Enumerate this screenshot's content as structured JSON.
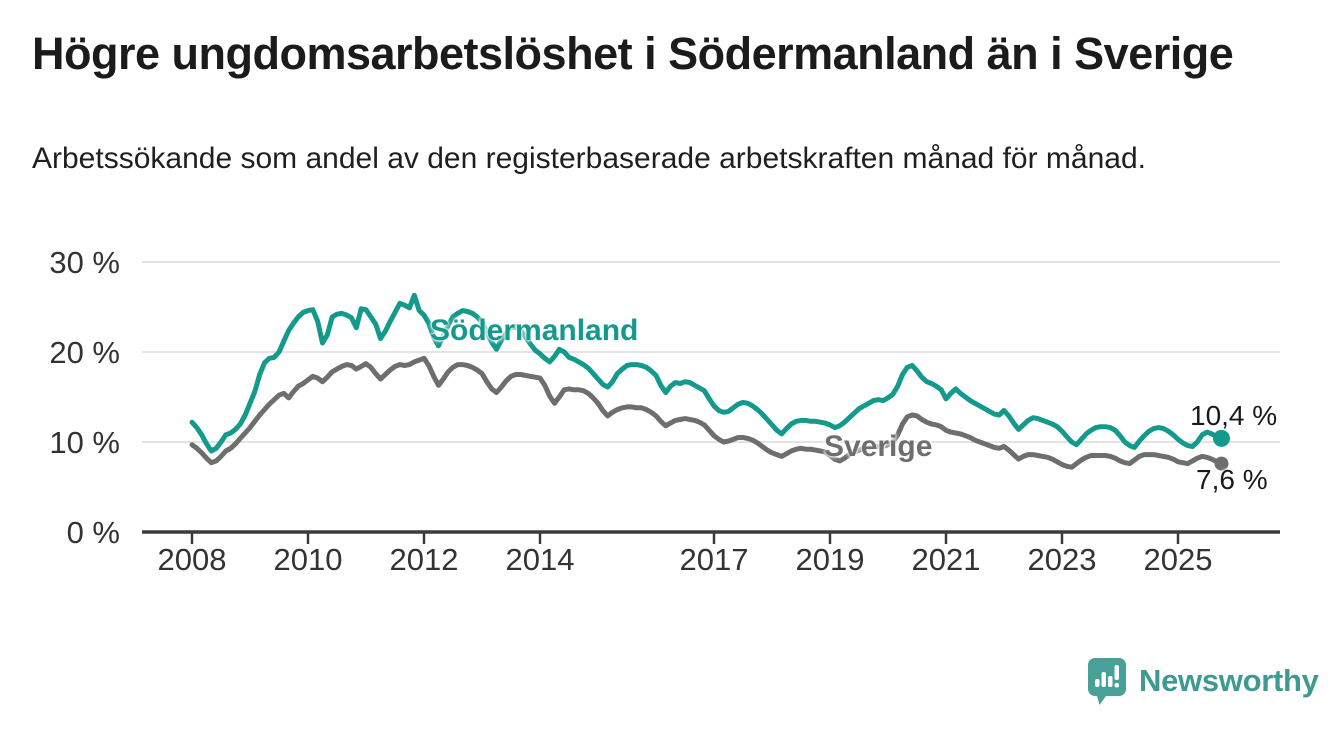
{
  "header": {
    "title": "Högre ungdomsarbetslöshet i Södermanland än i Sverige",
    "subtitle": "Arbetssökande som andel av den registerbaserade arbetskraften månad för månad."
  },
  "chart": {
    "labels": {
      "sodermanland": "Södermanland",
      "sverige": "Sverige"
    },
    "end_labels": {
      "sodermanland": "10,4 %",
      "sverige": "7,6 %"
    },
    "colors": {
      "sodermanland": "#149A8D",
      "sverige": "#6E6E6E",
      "gridline": "#e3e3e3",
      "axis": "#3b3b3b",
      "tick_text": "#333333"
    }
  },
  "footer": {
    "brand": "Newsworthy",
    "logo_teal": "#48A198"
  },
  "chart_data": {
    "type": "line",
    "title": "Högre ungdomsarbetslöshet i Södermanland än i Sverige",
    "subtitle": "Arbetssökande som andel av den registerbaserade arbetskraften månad för månad.",
    "frequency": "monthly",
    "x_start_year": 2008,
    "x_end": "2025-10",
    "ylim": [
      0,
      30
    ],
    "grid": "horizontal",
    "y_ticks": [
      {
        "value": 0,
        "label": "0 %"
      },
      {
        "value": 10,
        "label": "10 %"
      },
      {
        "value": 20,
        "label": "20 %"
      },
      {
        "value": 30,
        "label": "30 %"
      }
    ],
    "x_ticks": [
      {
        "value": 2008,
        "label": "2008"
      },
      {
        "value": 2010,
        "label": "2010"
      },
      {
        "value": 2012,
        "label": "2012"
      },
      {
        "value": 2014,
        "label": "2014"
      },
      {
        "value": 2017,
        "label": "2017"
      },
      {
        "value": 2019,
        "label": "2019"
      },
      {
        "value": 2021,
        "label": "2021"
      },
      {
        "value": 2023,
        "label": "2023"
      },
      {
        "value": 2025,
        "label": "2025"
      }
    ],
    "series": [
      {
        "name": "Sverige",
        "color": "#6E6E6E",
        "last_value_label": "7,6 %",
        "values": [
          9.7,
          9.3,
          8.8,
          8.2,
          7.7,
          7.9,
          8.4,
          9.0,
          9.3,
          9.8,
          10.4,
          11.0,
          11.6,
          12.3,
          13.0,
          13.6,
          14.2,
          14.7,
          15.2,
          15.4,
          14.9,
          15.6,
          16.2,
          16.5,
          16.9,
          17.3,
          17.1,
          16.7,
          17.2,
          17.8,
          18.1,
          18.4,
          18.6,
          18.5,
          18.1,
          18.4,
          18.7,
          18.3,
          17.6,
          17.0,
          17.5,
          18.0,
          18.4,
          18.6,
          18.5,
          18.6,
          18.9,
          19.1,
          19.3,
          18.5,
          17.3,
          16.3,
          17.0,
          17.8,
          18.3,
          18.6,
          18.6,
          18.5,
          18.3,
          18.0,
          17.6,
          16.7,
          15.9,
          15.5,
          16.1,
          16.8,
          17.3,
          17.5,
          17.5,
          17.4,
          17.3,
          17.2,
          17.1,
          16.3,
          15.1,
          14.3,
          15.0,
          15.8,
          15.9,
          15.8,
          15.8,
          15.7,
          15.4,
          14.9,
          14.3,
          13.5,
          12.9,
          13.3,
          13.6,
          13.8,
          13.9,
          13.9,
          13.8,
          13.8,
          13.6,
          13.3,
          12.9,
          12.3,
          11.8,
          12.1,
          12.4,
          12.5,
          12.6,
          12.5,
          12.4,
          12.2,
          11.9,
          11.3,
          10.7,
          10.3,
          10.0,
          10.1,
          10.3,
          10.5,
          10.5,
          10.4,
          10.2,
          9.9,
          9.5,
          9.1,
          8.8,
          8.6,
          8.4,
          8.7,
          9.0,
          9.2,
          9.3,
          9.2,
          9.2,
          9.1,
          9.0,
          8.9,
          8.5,
          8.1,
          7.9,
          8.2,
          8.6,
          8.9,
          9.1,
          9.3,
          9.4,
          9.5,
          9.5,
          9.5,
          9.7,
          10.0,
          10.8,
          12.0,
          12.8,
          13.0,
          12.9,
          12.5,
          12.2,
          12.0,
          11.9,
          11.7,
          11.3,
          11.1,
          11.0,
          10.9,
          10.7,
          10.5,
          10.2,
          10.0,
          9.8,
          9.6,
          9.4,
          9.3,
          9.5,
          9.1,
          8.6,
          8.1,
          8.4,
          8.6,
          8.6,
          8.5,
          8.4,
          8.3,
          8.1,
          7.8,
          7.5,
          7.3,
          7.2,
          7.6,
          8.0,
          8.3,
          8.5,
          8.5,
          8.5,
          8.5,
          8.4,
          8.2,
          7.9,
          7.7,
          7.6,
          8.0,
          8.4,
          8.6,
          8.6,
          8.6,
          8.5,
          8.4,
          8.3,
          8.1,
          7.8,
          7.7,
          7.6,
          7.9,
          8.2,
          8.4,
          8.3,
          8.1,
          7.8,
          7.6
        ]
      },
      {
        "name": "Södermanland",
        "color": "#149A8D",
        "last_value_label": "10,4 %",
        "values": [
          12.2,
          11.6,
          10.8,
          9.8,
          9.0,
          9.3,
          10.0,
          10.8,
          11.0,
          11.4,
          12.0,
          13.0,
          14.3,
          15.6,
          17.5,
          18.8,
          19.3,
          19.4,
          20.0,
          21.2,
          22.4,
          23.2,
          23.9,
          24.4,
          24.6,
          24.7,
          23.4,
          21.0,
          21.9,
          23.9,
          24.2,
          24.3,
          24.1,
          23.8,
          22.7,
          24.8,
          24.7,
          23.9,
          23.1,
          21.5,
          22.3,
          23.4,
          24.4,
          25.4,
          25.2,
          24.9,
          26.3,
          24.6,
          24.1,
          23.2,
          21.6,
          20.7,
          21.8,
          23.0,
          23.9,
          24.3,
          24.6,
          24.5,
          24.3,
          23.9,
          23.3,
          22.2,
          21.1,
          20.3,
          21.3,
          22.1,
          22.7,
          22.8,
          22.4,
          21.7,
          20.9,
          20.2,
          19.8,
          19.3,
          18.9,
          19.5,
          20.3,
          20.0,
          19.4,
          19.2,
          18.9,
          18.6,
          18.2,
          17.6,
          17.0,
          16.4,
          16.1,
          16.7,
          17.6,
          18.1,
          18.5,
          18.6,
          18.6,
          18.5,
          18.3,
          17.9,
          17.4,
          16.3,
          15.5,
          16.2,
          16.6,
          16.5,
          16.7,
          16.6,
          16.3,
          16.0,
          15.7,
          14.8,
          14.0,
          13.5,
          13.3,
          13.4,
          13.8,
          14.2,
          14.4,
          14.3,
          14.0,
          13.6,
          13.1,
          12.5,
          11.9,
          11.3,
          10.9,
          11.5,
          12.0,
          12.3,
          12.4,
          12.4,
          12.3,
          12.3,
          12.2,
          12.1,
          11.9,
          11.6,
          11.8,
          12.2,
          12.7,
          13.2,
          13.7,
          14.0,
          14.3,
          14.6,
          14.7,
          14.6,
          14.9,
          15.3,
          16.2,
          17.5,
          18.3,
          18.5,
          17.9,
          17.2,
          16.7,
          16.5,
          16.2,
          15.8,
          14.8,
          15.4,
          15.9,
          15.4,
          15.0,
          14.6,
          14.3,
          14.0,
          13.7,
          13.4,
          13.1,
          13.0,
          13.5,
          12.9,
          12.1,
          11.4,
          11.9,
          12.4,
          12.7,
          12.6,
          12.4,
          12.2,
          12.0,
          11.7,
          11.2,
          10.6,
          10.0,
          9.7,
          10.3,
          10.9,
          11.3,
          11.6,
          11.7,
          11.7,
          11.6,
          11.3,
          10.7,
          10.0,
          9.6,
          9.4,
          10.1,
          10.7,
          11.2,
          11.5,
          11.6,
          11.5,
          11.2,
          10.8,
          10.3,
          9.9,
          9.6,
          9.5,
          10.0,
          10.8,
          11.1,
          10.9,
          10.6,
          10.4
        ]
      }
    ]
  }
}
